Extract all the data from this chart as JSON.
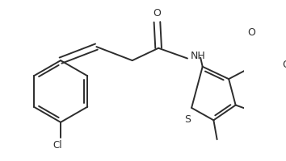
{
  "background_color": "#ffffff",
  "line_color": "#2d2d2d",
  "bond_width": 1.4,
  "figsize": [
    3.54,
    2.0
  ],
  "dpi": 100,
  "xlim": [
    0,
    354
  ],
  "ylim": [
    0,
    200
  ]
}
